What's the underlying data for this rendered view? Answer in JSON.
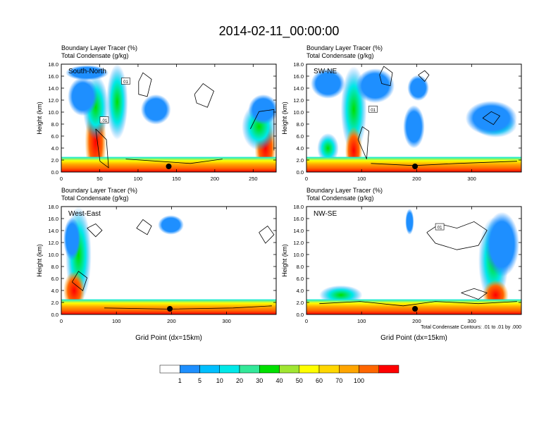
{
  "title": "2014-02-11_00:00:00",
  "colorbar": {
    "labels": [
      "1",
      "5",
      "10",
      "20",
      "30",
      "40",
      "50",
      "60",
      "70",
      "100"
    ],
    "colors": [
      "#ffffff",
      "#1e8fff",
      "#00bfff",
      "#00e8e8",
      "#33e899",
      "#00e000",
      "#a0e632",
      "#ffff00",
      "#ffd700",
      "#ffa500",
      "#ff6600",
      "#ff0000"
    ]
  },
  "chart_data": [
    {
      "type": "heatmap",
      "panel": "South-North",
      "title_lines": [
        "Boundary Layer Tracer   (%)",
        "Total Condensate   (g/kg)"
      ],
      "ylabel": "Height (km)",
      "xlabel": "",
      "xlim": [
        0,
        280
      ],
      "ylim": [
        0,
        18
      ],
      "xticks": [
        0,
        50,
        100,
        150,
        200,
        250
      ],
      "yticks": [
        "0.0",
        "2.0",
        "4.0",
        "6.0",
        "8.0",
        "10.0",
        "12.0",
        "14.0",
        "16.0",
        "18.0"
      ],
      "contour_labels": [
        "01",
        ".01"
      ],
      "marker_x": 140
    },
    {
      "type": "heatmap",
      "panel": "SW-NE",
      "title_lines": [
        "Boundary Layer Tracer   (%)",
        "Total Condensate   (g/kg)"
      ],
      "ylabel": "Height (km)",
      "xlabel": "",
      "xlim": [
        0,
        390
      ],
      "ylim": [
        0,
        18
      ],
      "xticks": [
        0,
        100,
        200,
        300
      ],
      "yticks": [
        "0.0",
        "2.0",
        "4.0",
        "6.0",
        "8.0",
        "10.0",
        "12.0",
        "14.0",
        "16.0",
        "18.0"
      ],
      "contour_labels": [
        "01"
      ],
      "marker_x": 197
    },
    {
      "type": "heatmap",
      "panel": "West-East",
      "title_lines": [
        "Boundary Layer Tracer   (%)",
        "Total Condensate   (g/kg)"
      ],
      "ylabel": "Height (km)",
      "xlabel": "Grid Point (dx=15km)",
      "xlim": [
        0,
        390
      ],
      "ylim": [
        0,
        18
      ],
      "xticks": [
        0,
        100,
        200,
        300
      ],
      "yticks": [
        "0.0",
        "2.0",
        "4.0",
        "6.0",
        "8.0",
        "10.0",
        "12.0",
        "14.0",
        "16.0",
        "18.0"
      ],
      "contour_labels": [],
      "marker_x": 197
    },
    {
      "type": "heatmap",
      "panel": "NW-SE",
      "title_lines": [
        "Boundary Layer Tracer   (%)",
        "Total Condensate   (g/kg)"
      ],
      "ylabel": "Height (km)",
      "xlabel": "Grid Point (dx=15km)",
      "xlim": [
        0,
        390
      ],
      "ylim": [
        0,
        18
      ],
      "xticks": [
        0,
        100,
        200,
        300
      ],
      "yticks": [
        "0.0",
        "2.0",
        "4.0",
        "6.0",
        "8.0",
        "10.0",
        "12.0",
        "14.0",
        "16.0",
        "18.0"
      ],
      "contour_labels": [
        "01"
      ],
      "marker_x": 197,
      "footnote": "Total Condensate Contours: .01 to .01 by .000"
    }
  ]
}
